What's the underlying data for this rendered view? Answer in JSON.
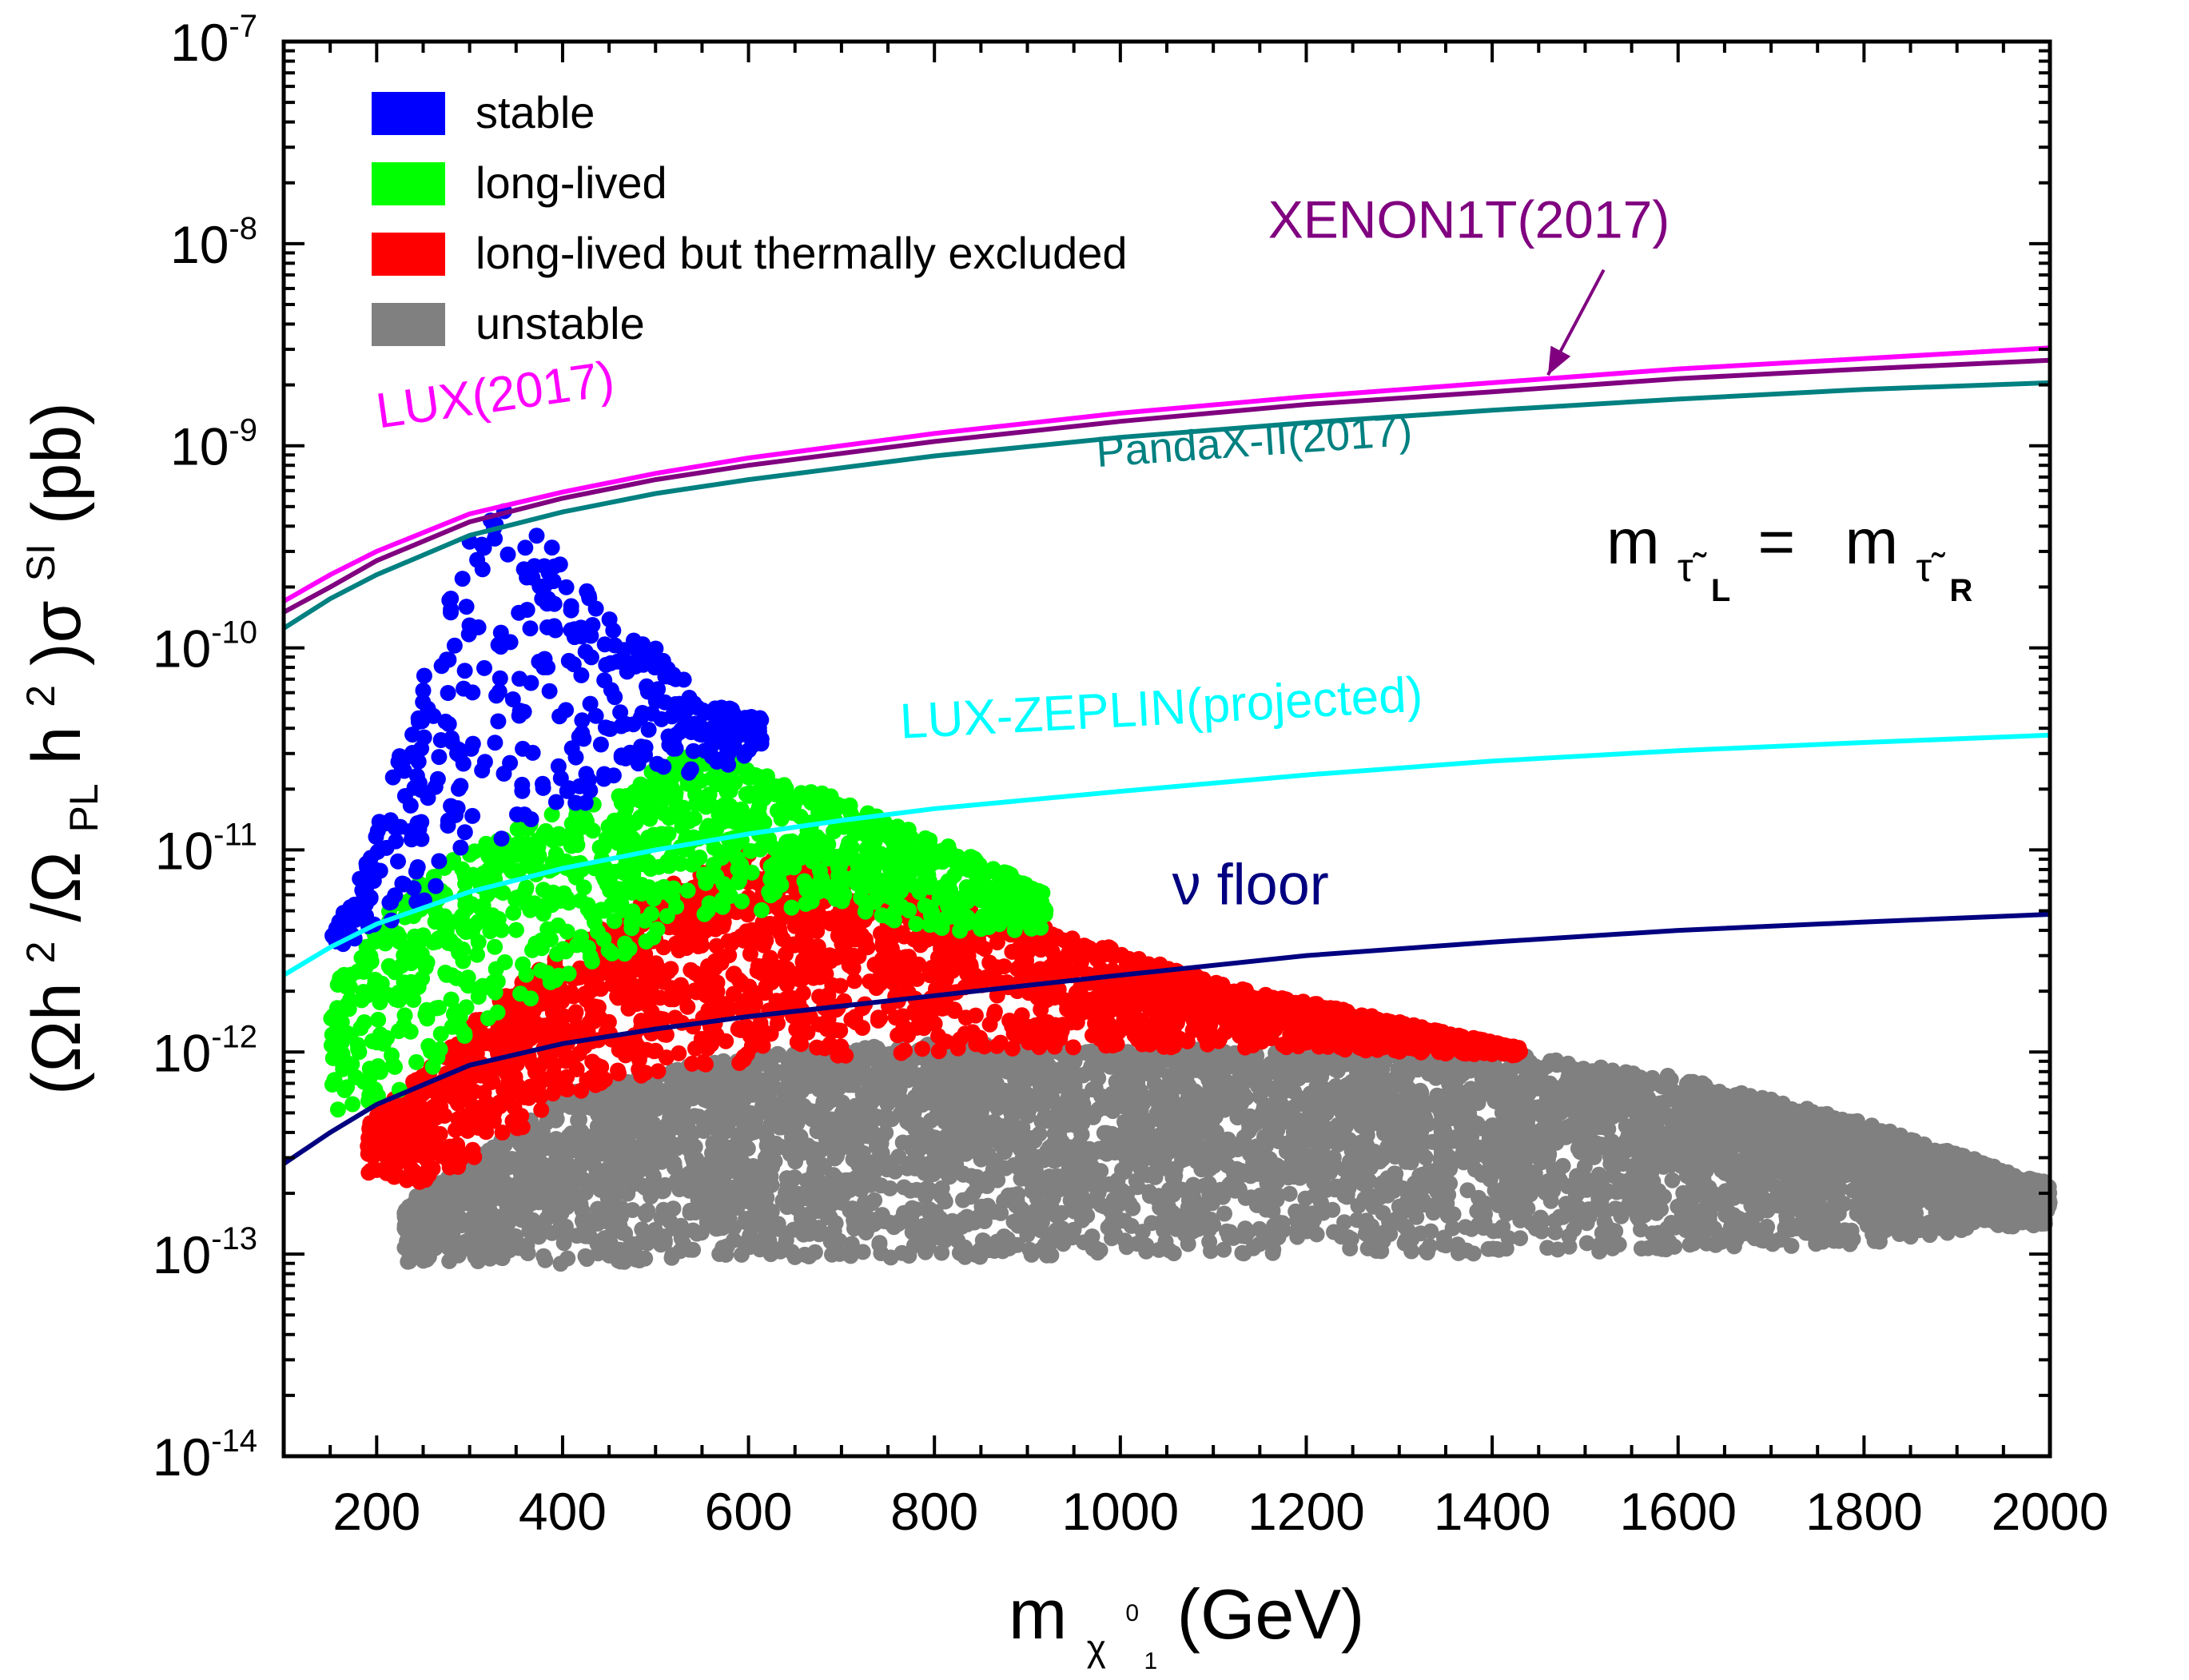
{
  "chart_data": {
    "type": "scatter",
    "xscale": "linear",
    "yscale": "log",
    "xlim": [
      100,
      2000
    ],
    "ylim": [
      1e-14,
      1e-07
    ],
    "xticks": [
      200,
      400,
      600,
      800,
      1000,
      1200,
      1400,
      1600,
      1800,
      2000
    ],
    "xtick_labels": [
      "200",
      "400",
      "600",
      "800",
      "1000",
      "1200",
      "1400",
      "1600",
      "1800",
      "2000"
    ],
    "ytick_labels": [
      {
        "base": "10",
        "exp": "-14"
      },
      {
        "base": "10",
        "exp": "-13"
      },
      {
        "base": "10",
        "exp": "-12"
      },
      {
        "base": "10",
        "exp": "-11"
      },
      {
        "base": "10",
        "exp": "-10"
      },
      {
        "base": "10",
        "exp": "-9"
      },
      {
        "base": "10",
        "exp": "-8"
      },
      {
        "base": "10",
        "exp": "-7"
      }
    ],
    "xlabel": {
      "main": "m",
      "sub1": "χ",
      "sup1": "0",
      "subsub": "1",
      "unit": "(GeV)"
    },
    "ylabel": {
      "p1": "(Ωh",
      "sup1": "2",
      "p2": "/Ω",
      "sub1": "PL",
      "p3": "h",
      "sup2": "2",
      "p4": ")σ",
      "sup3": "SI",
      "p5": "(pb)"
    },
    "annotation": {
      "lhs": "m",
      "lhs_sub": "τ̃",
      "lhs_subsub": "L",
      "eq": "=",
      "rhs": "m",
      "rhs_sub": "τ̃",
      "rhs_subsub": "R"
    },
    "legend": {
      "placement": "top-left",
      "entries": [
        {
          "label": "stable",
          "color": "#0000ff"
        },
        {
          "label": "long-lived",
          "color": "#00ff00"
        },
        {
          "label": "long-lived but thermally excluded",
          "color": "#ff0000"
        },
        {
          "label": "unstable",
          "color": "#808080"
        }
      ]
    },
    "curves": [
      {
        "name": "LUX(2017)",
        "label": "LUX(2017)",
        "color": "#ff00ff",
        "x": [
          100,
          150,
          200,
          300,
          400,
          500,
          600,
          800,
          1000,
          1200,
          1400,
          1600,
          1800,
          2000
        ],
        "y": [
          1.7e-10,
          2.3e-10,
          3e-10,
          4.6e-10,
          5.9e-10,
          7.3e-10,
          8.7e-10,
          1.15e-09,
          1.45e-09,
          1.75e-09,
          2.05e-09,
          2.4e-09,
          2.7e-09,
          3.05e-09
        ]
      },
      {
        "name": "XENON1T(2017)",
        "label": "XENON1T(2017)",
        "color": "#800080",
        "x": [
          100,
          150,
          200,
          300,
          400,
          500,
          600,
          800,
          1000,
          1200,
          1400,
          1600,
          1800,
          2000
        ],
        "y": [
          1.5e-10,
          2e-10,
          2.7e-10,
          4.2e-10,
          5.5e-10,
          6.8e-10,
          8e-10,
          1.05e-09,
          1.32e-09,
          1.6e-09,
          1.85e-09,
          2.15e-09,
          2.4e-09,
          2.65e-09
        ]
      },
      {
        "name": "PandaX-II(2017)",
        "label": "PandaX-II(2017)",
        "color": "#008080",
        "x": [
          100,
          150,
          200,
          300,
          400,
          500,
          600,
          800,
          1000,
          1200,
          1400,
          1600,
          1800,
          2000
        ],
        "y": [
          1.25e-10,
          1.75e-10,
          2.3e-10,
          3.6e-10,
          4.7e-10,
          5.8e-10,
          6.8e-10,
          8.9e-10,
          1.1e-09,
          1.3e-09,
          1.5e-09,
          1.7e-09,
          1.9e-09,
          2.05e-09
        ]
      },
      {
        "name": "LUX-ZEPLIN(projected)",
        "label": "LUX-ZEPLIN(projected)",
        "color": "#00ffff",
        "x": [
          100,
          150,
          200,
          300,
          400,
          500,
          600,
          700,
          800,
          1000,
          1200,
          1400,
          1600,
          1800,
          2000
        ],
        "y": [
          2.4e-12,
          3.3e-12,
          4.3e-12,
          6.2e-12,
          8.1e-12,
          1e-11,
          1.2e-11,
          1.4e-11,
          1.6e-11,
          1.95e-11,
          2.35e-11,
          2.75e-11,
          3.1e-11,
          3.4e-11,
          3.7e-11
        ]
      },
      {
        "name": "ν floor",
        "label": "ν floor",
        "color": "#000080",
        "x": [
          100,
          150,
          200,
          300,
          400,
          500,
          600,
          800,
          1000,
          1200,
          1400,
          1600,
          1800,
          2000
        ],
        "y": [
          2.8e-13,
          4e-13,
          5.5e-13,
          8.6e-13,
          1.1e-12,
          1.3e-12,
          1.5e-12,
          1.9e-12,
          2.4e-12,
          3e-12,
          3.5e-12,
          4e-12,
          4.4e-12,
          4.8e-12
        ]
      }
    ],
    "arrow": {
      "label": "XENON1T(2017)",
      "from": {
        "x": 1520,
        "logy": -8.13
      },
      "to": {
        "x": 1460,
        "logy": -8.65
      }
    },
    "curve_label_positions": [
      {
        "curve": "LUX(2017)",
        "x": 330,
        "logy": -8.83,
        "angle": -8
      },
      {
        "curve": "XENON1T(2017)",
        "x": 1375,
        "logy": -7.97,
        "angle": 0
      },
      {
        "curve": "PandaX-II(2017)",
        "x": 1145,
        "logy": -9.05,
        "angle": -4
      },
      {
        "curve": "LUX-ZEPLIN(projected)",
        "x": 1045,
        "logy": -10.38,
        "angle": -3
      },
      {
        "curve": "ν floor",
        "x": 1140,
        "logy": -11.27,
        "angle": 0
      }
    ],
    "scatter_regions": [
      {
        "name": "unstable",
        "color": "#808080",
        "count": 5200,
        "xmin": 230,
        "xmax": 2000,
        "upper_logy": {
          "x": [
            230,
            300,
            400,
            600,
            800,
            1000,
            1200,
            1400,
            1600,
            1800,
            2000
          ],
          "y": [
            -12.75,
            -12.55,
            -12.2,
            -12.0,
            -11.95,
            -11.98,
            -12.0,
            -12.0,
            -12.12,
            -12.35,
            -12.65
          ]
        },
        "lower_logy": {
          "x": [
            230,
            300,
            400,
            600,
            800,
            1000,
            1200,
            1400,
            1600,
            1800,
            2000
          ],
          "y": [
            -13.05,
            -13.05,
            -13.05,
            -13.02,
            -13.02,
            -13.0,
            -13.0,
            -13.0,
            -12.98,
            -12.95,
            -12.85
          ]
        }
      },
      {
        "name": "long-lived but thermally excluded",
        "color": "#ff0000",
        "count": 2300,
        "xmin": 190,
        "xmax": 1430,
        "upper_logy": {
          "x": [
            190,
            250,
            300,
            400,
            500,
            600,
            700,
            800,
            900,
            1000,
            1100,
            1200,
            1300,
            1430
          ],
          "y": [
            -12.35,
            -12.1,
            -11.85,
            -11.5,
            -11.2,
            -11.0,
            -11.08,
            -11.2,
            -11.35,
            -11.5,
            -11.65,
            -11.75,
            -11.85,
            -11.98
          ]
        },
        "lower_logy": {
          "x": [
            190,
            250,
            300,
            400,
            500,
            600,
            700,
            800,
            900,
            1000,
            1100,
            1200,
            1300,
            1430
          ],
          "y": [
            -12.6,
            -12.65,
            -12.55,
            -12.25,
            -12.1,
            -12.05,
            -12.02,
            -12.0,
            -11.98,
            -11.98,
            -11.98,
            -11.98,
            -12.0,
            -12.02
          ]
        }
      },
      {
        "name": "long-lived",
        "color": "#00ff00",
        "count": 1100,
        "xmin": 150,
        "xmax": 920,
        "upper_logy": {
          "x": [
            150,
            200,
            250,
            300,
            400,
            500,
            550,
            600,
            700,
            800,
            920
          ],
          "y": [
            -11.7,
            -11.35,
            -11.1,
            -11.0,
            -10.8,
            -10.6,
            -10.5,
            -10.6,
            -10.75,
            -10.95,
            -11.2
          ]
        },
        "lower_logy": {
          "x": [
            150,
            200,
            250,
            300,
            400,
            500,
            550,
            600,
            700,
            800,
            920
          ],
          "y": [
            -12.3,
            -12.25,
            -12.15,
            -11.9,
            -11.65,
            -11.45,
            -11.35,
            -11.3,
            -11.3,
            -11.4,
            -11.4
          ]
        }
      },
      {
        "name": "stable",
        "color": "#0000ff",
        "count": 420,
        "xmin": 150,
        "xmax": 615,
        "upper_logy": {
          "x": [
            150,
            200,
            250,
            300,
            340,
            400,
            450,
            500,
            550,
            615
          ],
          "y": [
            -11.45,
            -10.9,
            -10.15,
            -9.45,
            -9.25,
            -9.55,
            -9.85,
            -10.0,
            -10.25,
            -10.35
          ]
        },
        "lower_logy": {
          "x": [
            150,
            200,
            250,
            300,
            340,
            400,
            450,
            500,
            550,
            615
          ],
          "y": [
            -11.5,
            -11.4,
            -11.3,
            -11.05,
            -10.95,
            -10.9,
            -10.75,
            -10.65,
            -10.65,
            -10.5
          ]
        }
      }
    ]
  }
}
